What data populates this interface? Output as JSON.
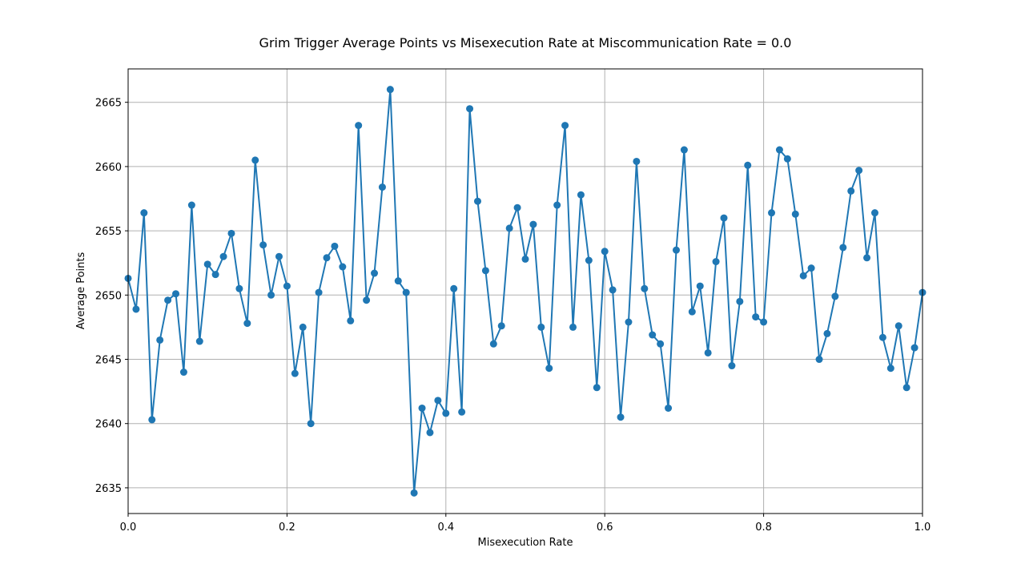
{
  "chart_data": {
    "type": "line",
    "title": "Grim Trigger Average Points vs Misexecution Rate at Miscommunication Rate = 0.0",
    "xlabel": "Misexecution Rate",
    "ylabel": "Average Points",
    "xlim": [
      0.0,
      1.0
    ],
    "ylim": [
      2633.0,
      2667.6
    ],
    "xticks": [
      0.0,
      0.2,
      0.4,
      0.6,
      0.8,
      1.0
    ],
    "xtick_labels": [
      "0.0",
      "0.2",
      "0.4",
      "0.6",
      "0.8",
      "1.0"
    ],
    "yticks": [
      2635,
      2640,
      2645,
      2650,
      2655,
      2660,
      2665
    ],
    "ytick_labels": [
      "2635",
      "2640",
      "2645",
      "2650",
      "2655",
      "2660",
      "2665"
    ],
    "grid": true,
    "colors": {
      "series": "#1f77b4",
      "grid": "#b0b0b0",
      "axes": "#000000"
    },
    "series": [
      {
        "x": [
          0.0,
          0.01,
          0.02,
          0.03,
          0.04,
          0.05,
          0.06,
          0.07,
          0.08,
          0.09,
          0.1,
          0.11,
          0.12,
          0.13,
          0.14,
          0.15,
          0.16,
          0.17,
          0.18,
          0.19,
          0.2,
          0.21,
          0.22,
          0.23,
          0.24,
          0.25,
          0.26,
          0.27,
          0.28,
          0.29,
          0.3,
          0.31,
          0.32,
          0.33,
          0.34,
          0.35,
          0.36,
          0.37,
          0.38,
          0.39,
          0.4,
          0.41,
          0.42,
          0.43,
          0.44,
          0.45,
          0.46,
          0.47,
          0.48,
          0.49,
          0.5,
          0.51,
          0.52,
          0.53,
          0.54,
          0.55,
          0.56,
          0.57,
          0.58,
          0.59,
          0.6,
          0.61,
          0.62,
          0.63,
          0.64,
          0.65,
          0.66,
          0.67,
          0.68,
          0.69,
          0.7,
          0.71,
          0.72,
          0.73,
          0.74,
          0.75,
          0.76,
          0.77,
          0.78,
          0.79,
          0.8,
          0.81,
          0.82,
          0.83,
          0.84,
          0.85,
          0.86,
          0.87,
          0.88,
          0.89,
          0.9,
          0.91,
          0.92,
          0.93,
          0.94,
          0.95,
          0.96,
          0.97,
          0.98,
          0.99,
          1.0
        ],
        "values": [
          2651.3,
          2648.9,
          2656.4,
          2640.3,
          2646.5,
          2649.6,
          2650.1,
          2644.0,
          2657.0,
          2646.4,
          2652.4,
          2651.6,
          2653.0,
          2654.8,
          2650.5,
          2647.8,
          2660.5,
          2653.9,
          2650.0,
          2653.0,
          2650.7,
          2643.9,
          2647.5,
          2640.0,
          2650.2,
          2652.9,
          2653.8,
          2652.2,
          2648.0,
          2663.2,
          2649.6,
          2651.7,
          2658.4,
          2666.0,
          2651.1,
          2650.2,
          2634.6,
          2641.2,
          2639.3,
          2641.8,
          2640.8,
          2650.5,
          2640.9,
          2664.5,
          2657.3,
          2651.9,
          2646.2,
          2647.6,
          2655.2,
          2656.8,
          2652.8,
          2655.5,
          2647.5,
          2644.3,
          2657.0,
          2663.2,
          2647.5,
          2657.8,
          2652.7,
          2642.8,
          2653.4,
          2650.4,
          2640.5,
          2647.9,
          2660.4,
          2650.5,
          2646.9,
          2646.2,
          2641.2,
          2653.5,
          2661.3,
          2648.7,
          2650.7,
          2645.5,
          2652.6,
          2656.0,
          2644.5,
          2649.5,
          2660.1,
          2648.3,
          2647.9,
          2656.4,
          2661.3,
          2660.6,
          2656.3,
          2651.5,
          2652.1,
          2645.0,
          2647.0,
          2649.9,
          2653.7,
          2658.1,
          2659.7,
          2652.9,
          2656.4,
          2646.7,
          2644.3,
          2647.6,
          2642.8,
          2645.9,
          2650.2
        ]
      }
    ]
  }
}
